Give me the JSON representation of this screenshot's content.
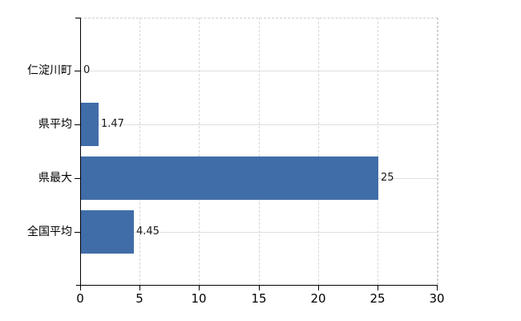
{
  "chart_data": {
    "type": "bar",
    "orientation": "horizontal",
    "title": "",
    "xlabel": "",
    "ylabel": "",
    "categories": [
      "仁淀川町",
      "県平均",
      "県最大",
      "全国平均"
    ],
    "values": [
      0,
      1.47,
      25,
      4.45
    ],
    "value_labels": [
      "0",
      "1.47",
      "25",
      "4.45"
    ],
    "xlim": [
      0,
      30
    ],
    "xticks": [
      0,
      5,
      10,
      15,
      20,
      25,
      30
    ],
    "xtick_labels": [
      "0",
      "5",
      "10",
      "15",
      "20",
      "25",
      "30"
    ],
    "grid": "on",
    "legend_position": "none",
    "bar_color": "#406da8",
    "grid_color_horizontal": "#dbe2db",
    "grid_color_vertical": "#d6d6d6",
    "axis_color": "#000000",
    "text_color": "#000000",
    "background_color": "#ffffff"
  }
}
